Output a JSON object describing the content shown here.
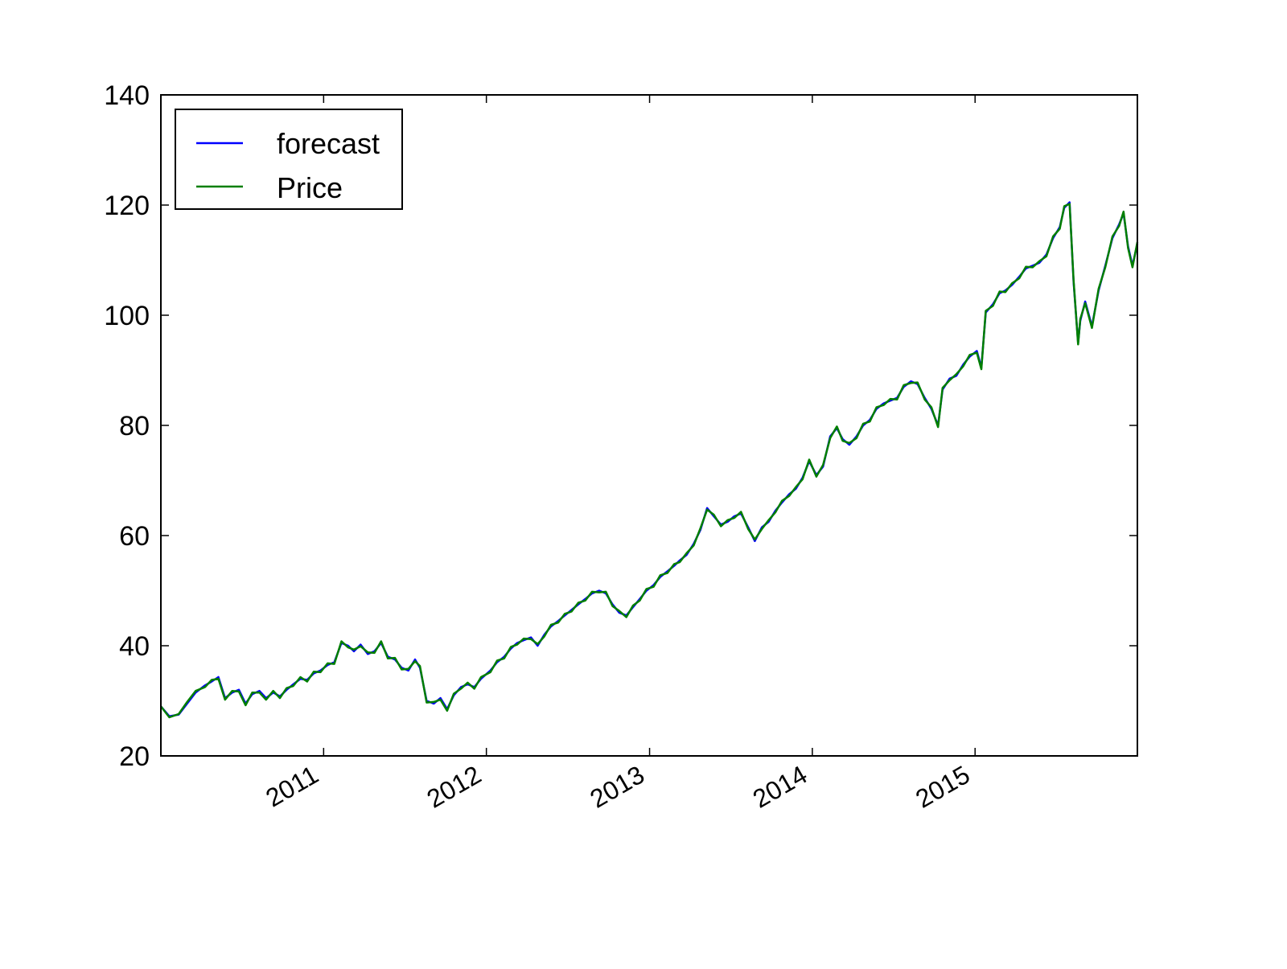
{
  "chart_data": {
    "type": "line",
    "title": "",
    "xlabel": "",
    "ylabel": "",
    "x_axis_type": "date",
    "xlim": [
      "2010-01-01",
      "2015-12-31"
    ],
    "ylim": [
      20,
      140
    ],
    "y_ticks": [
      20,
      40,
      60,
      80,
      100,
      120,
      140
    ],
    "x_ticks": [
      {
        "date": "2011-01-01",
        "label": "2011"
      },
      {
        "date": "2012-01-01",
        "label": "2012"
      },
      {
        "date": "2013-01-01",
        "label": "2013"
      },
      {
        "date": "2014-01-01",
        "label": "2014"
      },
      {
        "date": "2015-01-01",
        "label": "2015"
      }
    ],
    "grid": false,
    "legend_position": "upper-left",
    "series": [
      {
        "name": "forecast",
        "color": "#0000ff",
        "x": [
          "2010-01-01",
          "2010-01-20",
          "2010-02-10",
          "2010-03-01",
          "2010-03-20",
          "2010-04-10",
          "2010-04-25",
          "2010-05-10",
          "2010-05-25",
          "2010-06-10",
          "2010-06-25",
          "2010-07-10",
          "2010-07-25",
          "2010-08-10",
          "2010-08-25",
          "2010-09-10",
          "2010-09-25",
          "2010-10-10",
          "2010-10-25",
          "2010-11-10",
          "2010-11-25",
          "2010-12-10",
          "2010-12-25",
          "2011-01-10",
          "2011-01-25",
          "2011-02-10",
          "2011-02-25",
          "2011-03-10",
          "2011-03-25",
          "2011-04-10",
          "2011-04-25",
          "2011-05-10",
          "2011-05-25",
          "2011-06-10",
          "2011-06-25",
          "2011-07-10",
          "2011-07-25",
          "2011-08-05",
          "2011-08-20",
          "2011-09-05",
          "2011-09-20",
          "2011-10-05",
          "2011-10-20",
          "2011-11-05",
          "2011-11-20",
          "2011-12-05",
          "2011-12-20",
          "2012-01-10",
          "2012-01-25",
          "2012-02-10",
          "2012-02-25",
          "2012-03-10",
          "2012-03-25",
          "2012-04-10",
          "2012-04-25",
          "2012-05-10",
          "2012-05-25",
          "2012-06-10",
          "2012-06-25",
          "2012-07-10",
          "2012-07-25",
          "2012-08-10",
          "2012-08-25",
          "2012-09-10",
          "2012-09-25",
          "2012-10-10",
          "2012-10-25",
          "2012-11-10",
          "2012-11-25",
          "2012-12-10",
          "2012-12-25",
          "2013-01-10",
          "2013-01-25",
          "2013-02-10",
          "2013-02-25",
          "2013-03-10",
          "2013-03-25",
          "2013-04-10",
          "2013-04-25",
          "2013-05-10",
          "2013-05-25",
          "2013-06-10",
          "2013-06-25",
          "2013-07-10",
          "2013-07-25",
          "2013-08-10",
          "2013-08-25",
          "2013-09-10",
          "2013-09-25",
          "2013-10-10",
          "2013-10-25",
          "2013-11-10",
          "2013-11-25",
          "2013-12-10",
          "2013-12-25",
          "2014-01-10",
          "2014-01-25",
          "2014-02-10",
          "2014-02-25",
          "2014-03-10",
          "2014-03-25",
          "2014-04-10",
          "2014-04-25",
          "2014-05-10",
          "2014-05-25",
          "2014-06-10",
          "2014-06-25",
          "2014-07-10",
          "2014-07-25",
          "2014-08-10",
          "2014-08-25",
          "2014-09-10",
          "2014-09-25",
          "2014-10-10",
          "2014-10-20",
          "2014-11-05",
          "2014-11-20",
          "2014-12-05",
          "2014-12-20",
          "2015-01-05",
          "2015-01-15",
          "2015-01-25",
          "2015-02-10",
          "2015-02-25",
          "2015-03-10",
          "2015-03-25",
          "2015-04-10",
          "2015-04-25",
          "2015-05-10",
          "2015-05-25",
          "2015-06-10",
          "2015-06-25",
          "2015-07-10",
          "2015-07-20",
          "2015-08-01",
          "2015-08-10",
          "2015-08-20",
          "2015-08-25",
          "2015-09-05",
          "2015-09-20",
          "2015-10-05",
          "2015-10-20",
          "2015-11-05",
          "2015-11-20",
          "2015-11-30",
          "2015-12-10",
          "2015-12-20",
          "2015-12-31"
        ],
        "values": [
          29.0,
          27.2,
          27.5,
          29.5,
          31.5,
          32.8,
          33.5,
          34.3,
          30.5,
          31.5,
          32.0,
          29.5,
          31.2,
          31.8,
          30.5,
          31.5,
          30.8,
          32.0,
          33.0,
          34.0,
          33.8,
          35.0,
          35.5,
          36.5,
          37.0,
          40.5,
          40.0,
          39.0,
          40.2,
          38.5,
          39.0,
          40.5,
          38.0,
          37.5,
          36.0,
          35.5,
          37.5,
          36.0,
          30.0,
          29.5,
          30.5,
          28.5,
          31.0,
          32.5,
          33.0,
          32.5,
          34.0,
          35.5,
          37.0,
          38.0,
          39.5,
          40.5,
          41.0,
          41.5,
          40.0,
          42.0,
          43.5,
          44.5,
          45.5,
          46.5,
          47.5,
          48.5,
          49.5,
          50.0,
          49.5,
          47.5,
          46.0,
          45.5,
          47.0,
          48.5,
          50.0,
          51.0,
          52.5,
          53.5,
          54.5,
          55.5,
          56.5,
          58.5,
          61.0,
          65.0,
          63.5,
          62.0,
          62.5,
          63.5,
          64.0,
          61.5,
          59.0,
          61.5,
          62.5,
          64.5,
          66.0,
          67.5,
          68.5,
          70.5,
          73.5,
          71.0,
          72.5,
          78.0,
          79.5,
          77.5,
          76.5,
          78.0,
          80.0,
          81.0,
          83.0,
          84.0,
          84.5,
          85.0,
          87.0,
          88.0,
          87.5,
          85.0,
          83.0,
          80.0,
          86.5,
          88.5,
          89.0,
          91.0,
          92.5,
          93.5,
          90.5,
          100.5,
          102.0,
          104.0,
          104.5,
          105.5,
          107.0,
          108.5,
          109.0,
          109.5,
          111.0,
          114.0,
          116.0,
          119.5,
          120.5,
          106.0,
          95.0,
          99.0,
          102.5,
          98.0,
          104.5,
          109.0,
          114.0,
          116.5,
          118.5,
          112.5,
          109.0,
          113.0
        ]
      },
      {
        "name": "Price",
        "color": "#007f00",
        "x": [
          "2010-01-01",
          "2010-01-20",
          "2010-02-10",
          "2010-03-01",
          "2010-03-20",
          "2010-04-10",
          "2010-04-25",
          "2010-05-10",
          "2010-05-25",
          "2010-06-10",
          "2010-06-25",
          "2010-07-10",
          "2010-07-25",
          "2010-08-10",
          "2010-08-25",
          "2010-09-10",
          "2010-09-25",
          "2010-10-10",
          "2010-10-25",
          "2010-11-10",
          "2010-11-25",
          "2010-12-10",
          "2010-12-25",
          "2011-01-10",
          "2011-01-25",
          "2011-02-10",
          "2011-02-25",
          "2011-03-10",
          "2011-03-25",
          "2011-04-10",
          "2011-04-25",
          "2011-05-10",
          "2011-05-25",
          "2011-06-10",
          "2011-06-25",
          "2011-07-10",
          "2011-07-25",
          "2011-08-05",
          "2011-08-20",
          "2011-09-05",
          "2011-09-20",
          "2011-10-05",
          "2011-10-20",
          "2011-11-05",
          "2011-11-20",
          "2011-12-05",
          "2011-12-20",
          "2012-01-10",
          "2012-01-25",
          "2012-02-10",
          "2012-02-25",
          "2012-03-10",
          "2012-03-25",
          "2012-04-10",
          "2012-04-25",
          "2012-05-10",
          "2012-05-25",
          "2012-06-10",
          "2012-06-25",
          "2012-07-10",
          "2012-07-25",
          "2012-08-10",
          "2012-08-25",
          "2012-09-10",
          "2012-09-25",
          "2012-10-10",
          "2012-10-25",
          "2012-11-10",
          "2012-11-25",
          "2012-12-10",
          "2012-12-25",
          "2013-01-10",
          "2013-01-25",
          "2013-02-10",
          "2013-02-25",
          "2013-03-10",
          "2013-03-25",
          "2013-04-10",
          "2013-04-25",
          "2013-05-10",
          "2013-05-25",
          "2013-06-10",
          "2013-06-25",
          "2013-07-10",
          "2013-07-25",
          "2013-08-10",
          "2013-08-25",
          "2013-09-10",
          "2013-09-25",
          "2013-10-10",
          "2013-10-25",
          "2013-11-10",
          "2013-11-25",
          "2013-12-10",
          "2013-12-25",
          "2014-01-10",
          "2014-01-25",
          "2014-02-10",
          "2014-02-25",
          "2014-03-10",
          "2014-03-25",
          "2014-04-10",
          "2014-04-25",
          "2014-05-10",
          "2014-05-25",
          "2014-06-10",
          "2014-06-25",
          "2014-07-10",
          "2014-07-25",
          "2014-08-10",
          "2014-08-25",
          "2014-09-10",
          "2014-09-25",
          "2014-10-10",
          "2014-10-20",
          "2014-11-05",
          "2014-11-20",
          "2014-12-05",
          "2014-12-20",
          "2015-01-05",
          "2015-01-15",
          "2015-01-25",
          "2015-02-10",
          "2015-02-25",
          "2015-03-10",
          "2015-03-25",
          "2015-04-10",
          "2015-04-25",
          "2015-05-10",
          "2015-05-25",
          "2015-06-10",
          "2015-06-25",
          "2015-07-10",
          "2015-07-20",
          "2015-08-01",
          "2015-08-10",
          "2015-08-20",
          "2015-08-25",
          "2015-09-05",
          "2015-09-20",
          "2015-10-05",
          "2015-10-20",
          "2015-11-05",
          "2015-11-20",
          "2015-11-30",
          "2015-12-10",
          "2015-12-20",
          "2015-12-31"
        ],
        "values": [
          29.0,
          27.0,
          27.6,
          29.8,
          31.8,
          32.5,
          33.8,
          34.0,
          30.2,
          31.8,
          31.7,
          29.2,
          31.5,
          31.5,
          30.2,
          31.8,
          30.5,
          32.3,
          32.7,
          34.3,
          33.5,
          35.3,
          35.2,
          36.8,
          36.7,
          40.8,
          39.7,
          39.3,
          39.9,
          38.8,
          38.7,
          40.8,
          37.7,
          37.8,
          35.7,
          35.8,
          37.2,
          36.3,
          29.7,
          29.8,
          30.2,
          28.2,
          31.3,
          32.2,
          33.3,
          32.2,
          34.3,
          35.2,
          37.3,
          37.7,
          39.8,
          40.2,
          41.3,
          41.2,
          40.3,
          41.7,
          43.8,
          44.2,
          45.8,
          46.2,
          47.8,
          48.2,
          49.8,
          49.7,
          49.8,
          47.2,
          46.3,
          45.2,
          47.3,
          48.2,
          50.3,
          50.7,
          52.8,
          53.2,
          54.8,
          55.2,
          56.8,
          58.2,
          61.3,
          64.7,
          63.8,
          61.7,
          62.8,
          63.2,
          64.3,
          61.2,
          59.3,
          61.2,
          62.8,
          64.2,
          66.3,
          67.2,
          68.8,
          70.2,
          73.8,
          70.7,
          72.8,
          77.7,
          79.8,
          77.2,
          76.8,
          77.7,
          80.3,
          80.7,
          83.3,
          83.7,
          84.8,
          84.7,
          87.3,
          87.7,
          87.8,
          84.7,
          83.3,
          79.7,
          86.8,
          88.2,
          89.3,
          90.7,
          92.8,
          93.2,
          90.2,
          100.8,
          101.7,
          104.3,
          104.2,
          105.8,
          106.7,
          108.8,
          108.7,
          109.8,
          110.7,
          114.3,
          115.7,
          119.8,
          120.2,
          106.3,
          94.7,
          99.3,
          102.2,
          97.7,
          104.8,
          108.7,
          114.3,
          116.2,
          118.8,
          112.2,
          108.7,
          113.3
        ]
      }
    ]
  }
}
